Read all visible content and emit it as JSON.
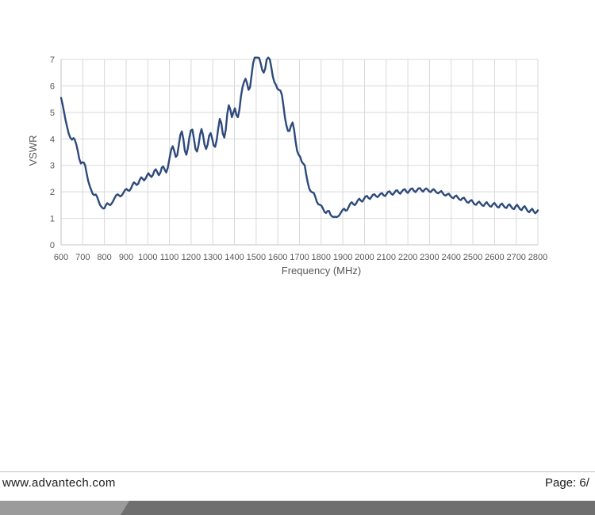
{
  "chart_data": {
    "type": "line",
    "title": "",
    "xlabel": "Frequency (MHz)",
    "ylabel": "VSWR",
    "xlim": [
      600,
      2800
    ],
    "ylim": [
      0,
      7
    ],
    "x_ticks": [
      600,
      700,
      800,
      900,
      1000,
      1100,
      1200,
      1300,
      1400,
      1500,
      1600,
      1700,
      1800,
      1900,
      2000,
      2100,
      2200,
      2300,
      2400,
      2500,
      2600,
      2700,
      2800
    ],
    "y_ticks": [
      0,
      1,
      2,
      3,
      4,
      5,
      6,
      7
    ],
    "grid": true,
    "legend": "none",
    "grid_color": "#D9D9D9",
    "axis_color": "#C3C3C3",
    "label_color": "#595959",
    "line_color": "#2E4A7C",
    "series": [
      {
        "name": "VSWR",
        "points": [
          [
            600,
            5.55
          ],
          [
            607,
            5.3
          ],
          [
            614,
            5.0
          ],
          [
            621,
            4.7
          ],
          [
            628,
            4.45
          ],
          [
            635,
            4.2
          ],
          [
            642,
            4.05
          ],
          [
            650,
            3.97
          ],
          [
            657,
            4.03
          ],
          [
            663,
            3.97
          ],
          [
            670,
            3.8
          ],
          [
            677,
            3.55
          ],
          [
            684,
            3.25
          ],
          [
            691,
            3.07
          ],
          [
            698,
            3.12
          ],
          [
            705,
            3.1
          ],
          [
            711,
            3.0
          ],
          [
            718,
            2.7
          ],
          [
            725,
            2.42
          ],
          [
            732,
            2.22
          ],
          [
            739,
            2.07
          ],
          [
            746,
            1.92
          ],
          [
            753,
            1.88
          ],
          [
            760,
            1.9
          ],
          [
            766,
            1.82
          ],
          [
            773,
            1.65
          ],
          [
            780,
            1.5
          ],
          [
            787,
            1.43
          ],
          [
            794,
            1.37
          ],
          [
            800,
            1.38
          ],
          [
            807,
            1.5
          ],
          [
            813,
            1.57
          ],
          [
            820,
            1.53
          ],
          [
            827,
            1.5
          ],
          [
            833,
            1.56
          ],
          [
            840,
            1.65
          ],
          [
            847,
            1.77
          ],
          [
            854,
            1.87
          ],
          [
            861,
            1.91
          ],
          [
            868,
            1.86
          ],
          [
            874,
            1.83
          ],
          [
            881,
            1.88
          ],
          [
            888,
            1.97
          ],
          [
            895,
            2.07
          ],
          [
            902,
            2.11
          ],
          [
            908,
            2.06
          ],
          [
            915,
            2.04
          ],
          [
            922,
            2.12
          ],
          [
            929,
            2.26
          ],
          [
            936,
            2.36
          ],
          [
            942,
            2.32
          ],
          [
            949,
            2.26
          ],
          [
            956,
            2.31
          ],
          [
            963,
            2.46
          ],
          [
            970,
            2.55
          ],
          [
            977,
            2.49
          ],
          [
            983,
            2.43
          ],
          [
            990,
            2.5
          ],
          [
            997,
            2.63
          ],
          [
            1003,
            2.7
          ],
          [
            1010,
            2.62
          ],
          [
            1017,
            2.56
          ],
          [
            1024,
            2.64
          ],
          [
            1031,
            2.8
          ],
          [
            1037,
            2.85
          ],
          [
            1044,
            2.74
          ],
          [
            1051,
            2.63
          ],
          [
            1058,
            2.72
          ],
          [
            1065,
            2.92
          ],
          [
            1071,
            2.96
          ],
          [
            1078,
            2.84
          ],
          [
            1085,
            2.73
          ],
          [
            1092,
            2.9
          ],
          [
            1100,
            3.25
          ],
          [
            1108,
            3.6
          ],
          [
            1115,
            3.72
          ],
          [
            1122,
            3.55
          ],
          [
            1129,
            3.32
          ],
          [
            1136,
            3.38
          ],
          [
            1143,
            3.75
          ],
          [
            1150,
            4.15
          ],
          [
            1157,
            4.28
          ],
          [
            1164,
            4.0
          ],
          [
            1171,
            3.55
          ],
          [
            1178,
            3.4
          ],
          [
            1185,
            3.65
          ],
          [
            1192,
            4.05
          ],
          [
            1199,
            4.32
          ],
          [
            1206,
            4.35
          ],
          [
            1213,
            4.0
          ],
          [
            1220,
            3.62
          ],
          [
            1227,
            3.52
          ],
          [
            1234,
            3.75
          ],
          [
            1241,
            4.15
          ],
          [
            1248,
            4.37
          ],
          [
            1255,
            4.15
          ],
          [
            1262,
            3.78
          ],
          [
            1269,
            3.62
          ],
          [
            1276,
            3.78
          ],
          [
            1283,
            4.12
          ],
          [
            1290,
            4.22
          ],
          [
            1297,
            4.02
          ],
          [
            1304,
            3.75
          ],
          [
            1311,
            3.7
          ],
          [
            1318,
            3.95
          ],
          [
            1325,
            4.4
          ],
          [
            1332,
            4.75
          ],
          [
            1339,
            4.6
          ],
          [
            1346,
            4.2
          ],
          [
            1353,
            4.05
          ],
          [
            1360,
            4.35
          ],
          [
            1367,
            4.95
          ],
          [
            1374,
            5.27
          ],
          [
            1381,
            5.1
          ],
          [
            1388,
            4.82
          ],
          [
            1395,
            5.0
          ],
          [
            1402,
            5.15
          ],
          [
            1409,
            4.9
          ],
          [
            1416,
            4.82
          ],
          [
            1423,
            5.1
          ],
          [
            1430,
            5.6
          ],
          [
            1437,
            5.95
          ],
          [
            1444,
            6.15
          ],
          [
            1451,
            6.27
          ],
          [
            1458,
            6.1
          ],
          [
            1465,
            5.85
          ],
          [
            1472,
            5.95
          ],
          [
            1479,
            6.4
          ],
          [
            1486,
            6.85
          ],
          [
            1493,
            7.1
          ],
          [
            1500,
            7.25
          ],
          [
            1507,
            7.25
          ],
          [
            1514,
            7.05
          ],
          [
            1521,
            6.85
          ],
          [
            1528,
            6.6
          ],
          [
            1535,
            6.5
          ],
          [
            1542,
            6.65
          ],
          [
            1549,
            7.0
          ],
          [
            1556,
            7.15
          ],
          [
            1563,
            7.0
          ],
          [
            1570,
            6.7
          ],
          [
            1577,
            6.35
          ],
          [
            1584,
            6.15
          ],
          [
            1591,
            6.05
          ],
          [
            1598,
            5.9
          ],
          [
            1605,
            5.85
          ],
          [
            1612,
            5.82
          ],
          [
            1619,
            5.65
          ],
          [
            1626,
            5.25
          ],
          [
            1633,
            4.8
          ],
          [
            1640,
            4.5
          ],
          [
            1647,
            4.3
          ],
          [
            1654,
            4.3
          ],
          [
            1661,
            4.5
          ],
          [
            1668,
            4.62
          ],
          [
            1675,
            4.35
          ],
          [
            1682,
            3.9
          ],
          [
            1689,
            3.55
          ],
          [
            1696,
            3.4
          ],
          [
            1703,
            3.33
          ],
          [
            1710,
            3.15
          ],
          [
            1717,
            3.07
          ],
          [
            1724,
            3.0
          ],
          [
            1731,
            2.65
          ],
          [
            1738,
            2.35
          ],
          [
            1745,
            2.12
          ],
          [
            1752,
            2.02
          ],
          [
            1759,
            1.98
          ],
          [
            1766,
            1.96
          ],
          [
            1773,
            1.82
          ],
          [
            1780,
            1.62
          ],
          [
            1787,
            1.53
          ],
          [
            1794,
            1.51
          ],
          [
            1801,
            1.48
          ],
          [
            1808,
            1.38
          ],
          [
            1815,
            1.25
          ],
          [
            1822,
            1.2
          ],
          [
            1829,
            1.27
          ],
          [
            1836,
            1.28
          ],
          [
            1843,
            1.14
          ],
          [
            1850,
            1.07
          ],
          [
            1857,
            1.05
          ],
          [
            1864,
            1.06
          ],
          [
            1871,
            1.05
          ],
          [
            1878,
            1.07
          ],
          [
            1885,
            1.13
          ],
          [
            1892,
            1.23
          ],
          [
            1899,
            1.32
          ],
          [
            1906,
            1.36
          ],
          [
            1913,
            1.29
          ],
          [
            1920,
            1.31
          ],
          [
            1927,
            1.43
          ],
          [
            1934,
            1.55
          ],
          [
            1941,
            1.61
          ],
          [
            1948,
            1.54
          ],
          [
            1955,
            1.5
          ],
          [
            1962,
            1.57
          ],
          [
            1969,
            1.68
          ],
          [
            1976,
            1.74
          ],
          [
            1983,
            1.67
          ],
          [
            1990,
            1.63
          ],
          [
            1997,
            1.72
          ],
          [
            2004,
            1.82
          ],
          [
            2011,
            1.85
          ],
          [
            2018,
            1.77
          ],
          [
            2025,
            1.73
          ],
          [
            2032,
            1.81
          ],
          [
            2039,
            1.89
          ],
          [
            2046,
            1.91
          ],
          [
            2053,
            1.84
          ],
          [
            2060,
            1.8
          ],
          [
            2067,
            1.86
          ],
          [
            2074,
            1.93
          ],
          [
            2081,
            1.95
          ],
          [
            2088,
            1.87
          ],
          [
            2095,
            1.84
          ],
          [
            2102,
            1.92
          ],
          [
            2109,
            2.0
          ],
          [
            2116,
            2.02
          ],
          [
            2123,
            1.93
          ],
          [
            2130,
            1.89
          ],
          [
            2137,
            1.96
          ],
          [
            2144,
            2.04
          ],
          [
            2151,
            2.06
          ],
          [
            2158,
            1.97
          ],
          [
            2165,
            1.93
          ],
          [
            2172,
            2.01
          ],
          [
            2179,
            2.08
          ],
          [
            2186,
            2.1
          ],
          [
            2193,
            2.01
          ],
          [
            2200,
            1.96
          ],
          [
            2207,
            2.04
          ],
          [
            2214,
            2.11
          ],
          [
            2221,
            2.13
          ],
          [
            2228,
            2.04
          ],
          [
            2235,
            1.99
          ],
          [
            2242,
            2.06
          ],
          [
            2249,
            2.13
          ],
          [
            2256,
            2.14
          ],
          [
            2263,
            2.06
          ],
          [
            2270,
            2.01
          ],
          [
            2277,
            2.08
          ],
          [
            2284,
            2.13
          ],
          [
            2291,
            2.09
          ],
          [
            2298,
            2.02
          ],
          [
            2305,
            1.99
          ],
          [
            2312,
            2.06
          ],
          [
            2319,
            2.1
          ],
          [
            2326,
            2.04
          ],
          [
            2333,
            1.97
          ],
          [
            2340,
            1.94
          ],
          [
            2347,
            1.99
          ],
          [
            2354,
            2.03
          ],
          [
            2361,
            1.95
          ],
          [
            2368,
            1.88
          ],
          [
            2375,
            1.86
          ],
          [
            2382,
            1.91
          ],
          [
            2389,
            1.93
          ],
          [
            2396,
            1.85
          ],
          [
            2403,
            1.79
          ],
          [
            2410,
            1.76
          ],
          [
            2417,
            1.83
          ],
          [
            2424,
            1.86
          ],
          [
            2431,
            1.78
          ],
          [
            2438,
            1.71
          ],
          [
            2445,
            1.69
          ],
          [
            2452,
            1.76
          ],
          [
            2459,
            1.78
          ],
          [
            2466,
            1.69
          ],
          [
            2473,
            1.61
          ],
          [
            2480,
            1.59
          ],
          [
            2487,
            1.66
          ],
          [
            2494,
            1.69
          ],
          [
            2501,
            1.61
          ],
          [
            2508,
            1.53
          ],
          [
            2515,
            1.51
          ],
          [
            2522,
            1.59
          ],
          [
            2529,
            1.63
          ],
          [
            2536,
            1.56
          ],
          [
            2543,
            1.49
          ],
          [
            2550,
            1.47
          ],
          [
            2557,
            1.56
          ],
          [
            2564,
            1.61
          ],
          [
            2571,
            1.53
          ],
          [
            2578,
            1.46
          ],
          [
            2585,
            1.44
          ],
          [
            2592,
            1.53
          ],
          [
            2599,
            1.58
          ],
          [
            2606,
            1.51
          ],
          [
            2613,
            1.43
          ],
          [
            2620,
            1.41
          ],
          [
            2627,
            1.51
          ],
          [
            2634,
            1.56
          ],
          [
            2641,
            1.48
          ],
          [
            2648,
            1.41
          ],
          [
            2655,
            1.39
          ],
          [
            2662,
            1.49
          ],
          [
            2669,
            1.53
          ],
          [
            2676,
            1.45
          ],
          [
            2683,
            1.37
          ],
          [
            2690,
            1.35
          ],
          [
            2697,
            1.45
          ],
          [
            2704,
            1.51
          ],
          [
            2711,
            1.43
          ],
          [
            2718,
            1.34
          ],
          [
            2725,
            1.31
          ],
          [
            2732,
            1.41
          ],
          [
            2739,
            1.46
          ],
          [
            2746,
            1.37
          ],
          [
            2753,
            1.27
          ],
          [
            2760,
            1.23
          ],
          [
            2767,
            1.31
          ],
          [
            2774,
            1.36
          ],
          [
            2781,
            1.26
          ],
          [
            2788,
            1.19
          ],
          [
            2795,
            1.24
          ],
          [
            2800,
            1.3
          ]
        ]
      }
    ]
  },
  "footer": {
    "website": "www.advantech.com",
    "page_label": "Page: 6/",
    "divider_color": "#C0C0C0",
    "bar_light_color": "#9B9B9B",
    "bar_dark_color": "#6F6F6F"
  }
}
